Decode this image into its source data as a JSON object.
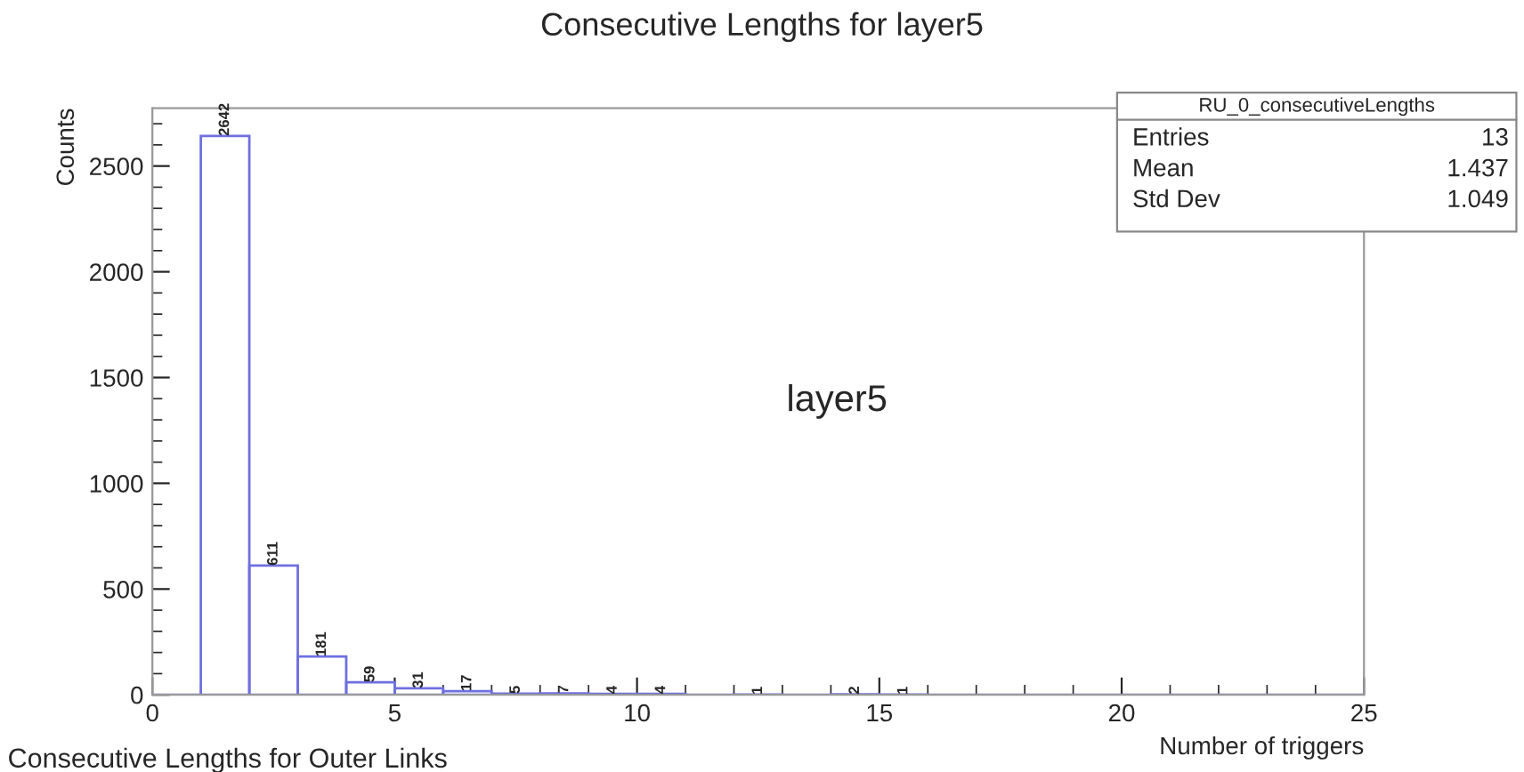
{
  "chart_data": {
    "type": "histogram",
    "title": "Consecutive Lengths for layer5",
    "xlabel": "Number of triggers",
    "ylabel": "Counts",
    "bins": [
      0,
      1,
      2,
      3,
      4,
      5,
      6,
      7,
      8,
      9,
      10,
      11,
      12,
      13,
      14,
      15,
      16,
      17,
      18,
      19,
      20,
      21,
      22,
      23,
      24,
      25
    ],
    "values": [
      0,
      2642,
      611,
      181,
      59,
      31,
      17,
      5,
      7,
      4,
      4,
      0,
      1,
      0,
      2,
      1,
      0,
      0,
      0,
      0,
      0,
      0,
      0,
      0,
      0
    ],
    "value_labels": [
      null,
      "2642",
      "611",
      "181",
      "59",
      "31",
      "17",
      "5",
      "7",
      "4",
      "4",
      null,
      "1",
      null,
      "2",
      "1",
      null,
      null,
      null,
      null,
      null,
      null,
      null,
      null,
      null
    ],
    "color": "#6f6fe0",
    "xlim": [
      0,
      25
    ],
    "xticks": [
      0,
      5,
      10,
      15,
      20,
      25
    ],
    "ylim": [
      0,
      2774
    ],
    "yticks": [
      0,
      500,
      1000,
      1500,
      2000,
      2500
    ],
    "grid": false,
    "annotations": [
      "layer5",
      "RU_0_consecutiveLengths",
      "Entries",
      "13",
      "Mean",
      "1.437",
      "Std Dev",
      "1.049",
      "Consecutive Lengths for Outer Links"
    ]
  }
}
